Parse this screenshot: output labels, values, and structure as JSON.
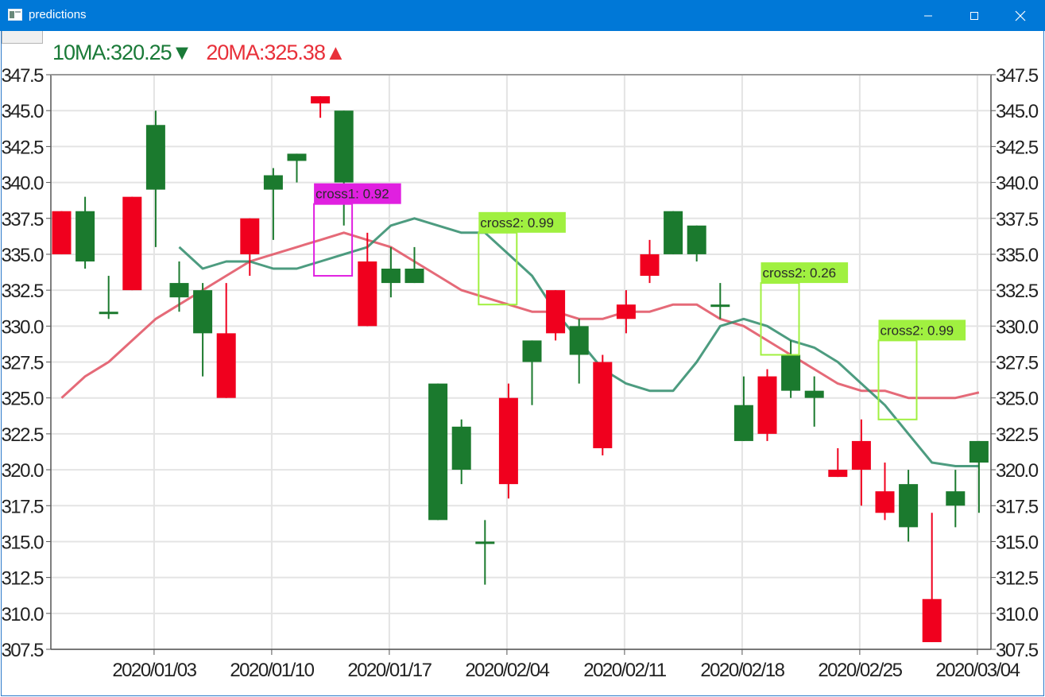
{
  "window": {
    "title": "predictions"
  },
  "legend": {
    "ma10": "10MA:320.25▼",
    "ma20": "20MA:325.38▲"
  },
  "colors": {
    "up": "#1b7a2e",
    "down": "#f0001e",
    "ma10": "#2e8b6a",
    "ma20": "#e05060",
    "cross1": "#e020e0",
    "cross2": "#a0f040"
  },
  "chart_data": {
    "type": "candlestick",
    "ylim": [
      307.5,
      347.5
    ],
    "yticks": [
      "347.5",
      "345.0",
      "342.5",
      "340.0",
      "337.5",
      "335.0",
      "332.5",
      "330.0",
      "327.5",
      "325.0",
      "322.5",
      "320.0",
      "317.5",
      "315.0",
      "312.5",
      "310.0",
      "307.5"
    ],
    "xticks": [
      {
        "label": "2020/01/03",
        "index": 4
      },
      {
        "label": "2020/01/10",
        "index": 9
      },
      {
        "label": "2020/01/17",
        "index": 14
      },
      {
        "label": "2020/02/04",
        "index": 19
      },
      {
        "label": "2020/02/11",
        "index": 24
      },
      {
        "label": "2020/02/18",
        "index": 29
      },
      {
        "label": "2020/02/25",
        "index": 34
      },
      {
        "label": "2020/03/04",
        "index": 39
      }
    ],
    "candles": [
      {
        "o": 338,
        "h": 338,
        "l": 335,
        "c": 335
      },
      {
        "o": 334.5,
        "h": 339,
        "l": 334,
        "c": 338
      },
      {
        "o": 331,
        "h": 333.5,
        "l": 330.5,
        "c": 331
      },
      {
        "o": 339,
        "h": 339,
        "l": 332.5,
        "c": 332.5
      },
      {
        "o": 339.5,
        "h": 345,
        "l": 335.5,
        "c": 344
      },
      {
        "o": 332,
        "h": 334.5,
        "l": 331,
        "c": 333
      },
      {
        "o": 329.5,
        "h": 333,
        "l": 326.5,
        "c": 332.5
      },
      {
        "o": 329.5,
        "h": 333,
        "l": 325,
        "c": 325
      },
      {
        "o": 337.5,
        "h": 337.5,
        "l": 333.5,
        "c": 335
      },
      {
        "o": 339.5,
        "h": 341,
        "l": 336,
        "c": 340.5
      },
      {
        "o": 341.5,
        "h": 342,
        "l": 340,
        "c": 342
      },
      {
        "o": 346,
        "h": 346,
        "l": 344.5,
        "c": 345.5
      },
      {
        "o": 340,
        "h": 345,
        "l": 337,
        "c": 345
      },
      {
        "o": 334.5,
        "h": 336.5,
        "l": 330,
        "c": 330
      },
      {
        "o": 333,
        "h": 335.5,
        "l": 332,
        "c": 334
      },
      {
        "o": 333,
        "h": 335.5,
        "l": 333,
        "c": 334
      },
      {
        "o": 316.5,
        "h": 326,
        "l": 316.5,
        "c": 326
      },
      {
        "o": 320,
        "h": 323.5,
        "l": 319,
        "c": 323
      },
      {
        "o": 315,
        "h": 316.5,
        "l": 312,
        "c": 315
      },
      {
        "o": 325,
        "h": 326,
        "l": 318,
        "c": 319
      },
      {
        "o": 327.5,
        "h": 329,
        "l": 324.5,
        "c": 329
      },
      {
        "o": 332.5,
        "h": 332.5,
        "l": 329,
        "c": 329.5
      },
      {
        "o": 328,
        "h": 330.5,
        "l": 326,
        "c": 330
      },
      {
        "o": 327.5,
        "h": 328,
        "l": 321,
        "c": 321.5
      },
      {
        "o": 331.5,
        "h": 332.5,
        "l": 329.5,
        "c": 330.5
      },
      {
        "o": 335,
        "h": 336,
        "l": 333,
        "c": 333.5
      },
      {
        "o": 335,
        "h": 338,
        "l": 335,
        "c": 338
      },
      {
        "o": 335,
        "h": 337,
        "l": 334.5,
        "c": 337
      },
      {
        "o": 331.5,
        "h": 333,
        "l": 330.5,
        "c": 331.5
      },
      {
        "o": 322,
        "h": 326.5,
        "l": 322,
        "c": 324.5
      },
      {
        "o": 326.5,
        "h": 327,
        "l": 322,
        "c": 322.5
      },
      {
        "o": 325.5,
        "h": 329,
        "l": 325,
        "c": 328
      },
      {
        "o": 325,
        "h": 326.5,
        "l": 323,
        "c": 325.5
      },
      {
        "o": 320,
        "h": 321.5,
        "l": 319.5,
        "c": 319.5
      },
      {
        "o": 322,
        "h": 323.5,
        "l": 317.5,
        "c": 320
      },
      {
        "o": 318.5,
        "h": 320.5,
        "l": 316.5,
        "c": 317
      },
      {
        "o": 316,
        "h": 320,
        "l": 315,
        "c": 319
      },
      {
        "o": 311,
        "h": 317,
        "l": 308,
        "c": 308
      },
      {
        "o": 317.5,
        "h": 320,
        "l": 316,
        "c": 318.5
      },
      {
        "o": 320.5,
        "h": 322,
        "l": 317,
        "c": 322
      }
    ],
    "ma10": [
      null,
      335.5,
      334,
      334.5,
      334,
      334.5,
      334,
      334,
      335,
      335.5,
      337,
      337.5,
      337,
      336.5,
      336.5,
      335,
      333.5,
      331,
      329,
      327,
      326,
      325.5,
      325.5,
      327.5,
      330,
      330.5,
      330,
      329,
      328.5,
      327.5,
      326,
      324.5,
      322.5,
      320.5,
      320.25
    ],
    "ma10_start": 5,
    "ma20": [
      null,
      null,
      null,
      null,
      null,
      null,
      null,
      null,
      null,
      null,
      null,
      null,
      null,
      null,
      null,
      null,
      null,
      null,
      null,
      null
    ],
    "ma20_series": [
      325,
      326.5,
      327.5,
      329,
      330.5,
      331.5,
      332.5,
      333.5,
      334.5,
      335,
      335.5,
      336,
      336.5,
      336,
      335.5,
      334.5,
      333.5,
      332.5,
      332,
      331.5,
      331,
      331,
      330.5,
      330.5,
      331,
      331,
      331.5,
      331.5,
      330.5,
      330,
      329,
      328,
      327,
      326,
      325.5,
      325.5,
      325,
      325,
      325,
      325.38
    ],
    "ma10_series": [
      null,
      null,
      null,
      null,
      null,
      335.5,
      334,
      334.5,
      334.5,
      334,
      334,
      334.5,
      335,
      335.5,
      337,
      337.5,
      337,
      336.5,
      336.5,
      335,
      333.5,
      331,
      329,
      327,
      326,
      325.5,
      325.5,
      327.5,
      330,
      330.5,
      330,
      329,
      328.5,
      327.5,
      326,
      324.5,
      322.5,
      320.5,
      320.25,
      320.25
    ],
    "annotations": [
      {
        "label": "cross1: 0.92",
        "index": 11,
        "top": 338.5,
        "bottom": 333.5,
        "kind": "cross1"
      },
      {
        "label": "cross2: 0.99",
        "index": 18,
        "top": 336.5,
        "bottom": 331.5,
        "kind": "cross2"
      },
      {
        "label": "cross2: 0.26",
        "index": 30,
        "top": 333,
        "bottom": 328,
        "kind": "cross2"
      },
      {
        "label": "cross2: 0.99",
        "index": 35,
        "top": 329,
        "bottom": 323.5,
        "kind": "cross2"
      }
    ]
  }
}
